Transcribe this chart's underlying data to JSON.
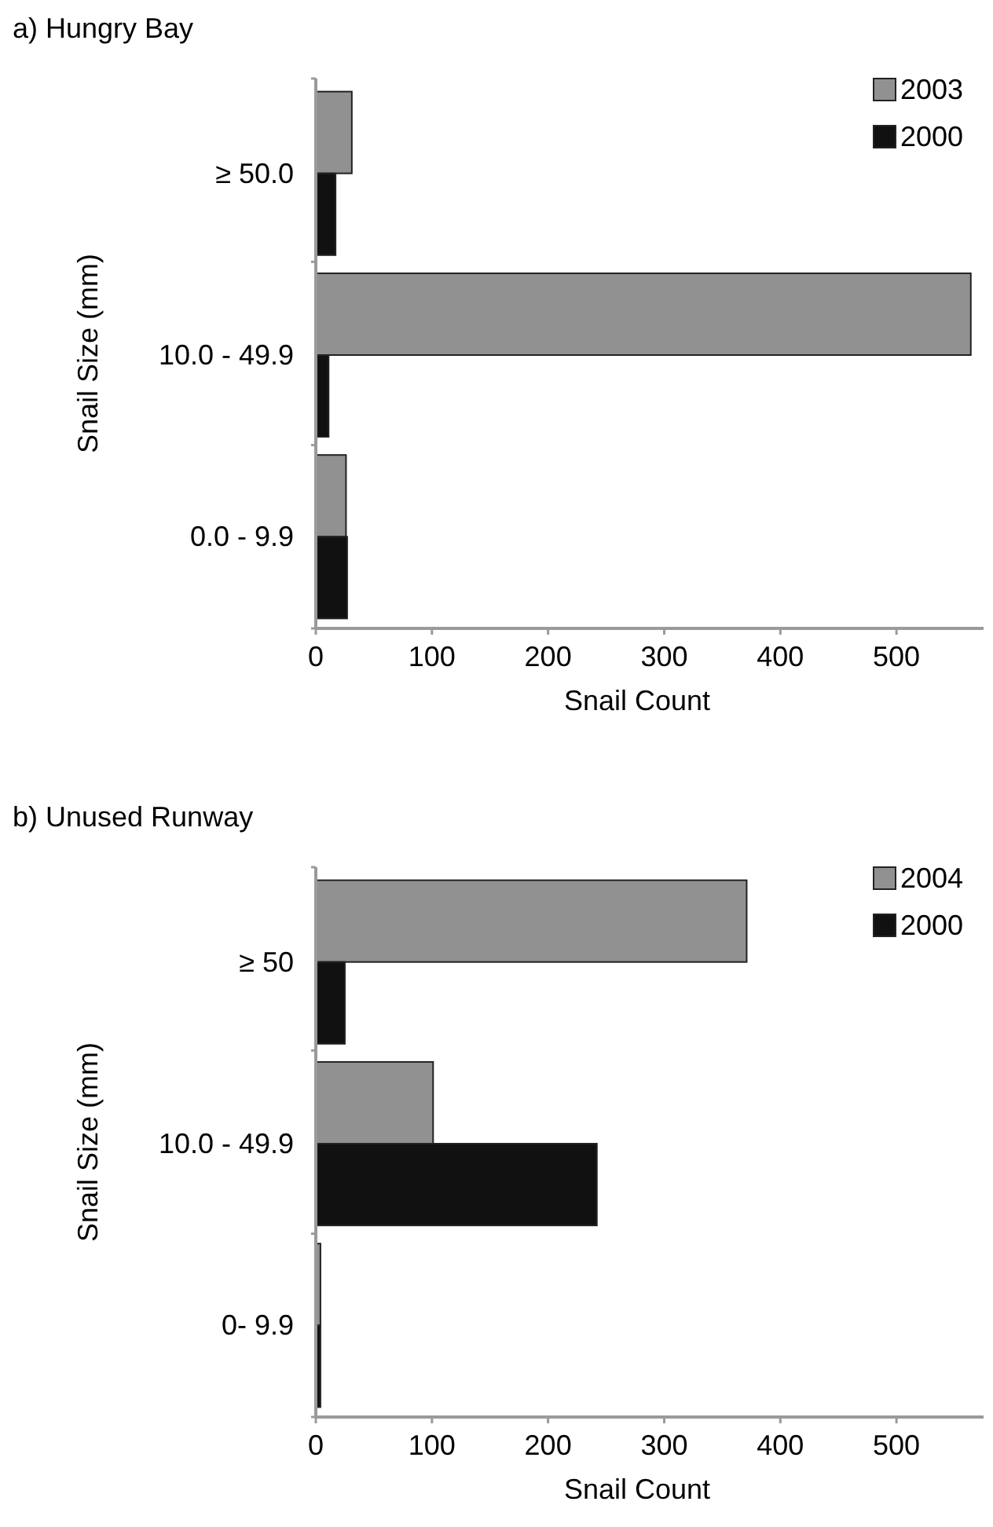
{
  "chart_data": [
    {
      "type": "bar",
      "orientation": "horizontal",
      "title": "a) Hungry Bay",
      "xlabel": "Snail Count",
      "ylabel": "Snail Size (mm)",
      "categories": [
        "≥ 50.0",
        "10.0 - 49.9",
        "0.0 - 9.9"
      ],
      "series": [
        {
          "name": "2003",
          "color": "#919191",
          "values": [
            31,
            564,
            26
          ]
        },
        {
          "name": "2000",
          "color": "#111111",
          "values": [
            17,
            11,
            27
          ]
        }
      ],
      "xlim": [
        0,
        575
      ],
      "xticks": [
        0,
        100,
        200,
        300,
        400,
        500
      ],
      "legend": "top right"
    },
    {
      "type": "bar",
      "orientation": "horizontal",
      "title": "b) Unused Runway",
      "xlabel": "Snail Count",
      "ylabel": "Snail Size (mm)",
      "categories": [
        "≥ 50",
        "10.0 - 49.9",
        "0- 9.9"
      ],
      "series": [
        {
          "name": "2004",
          "color": "#919191",
          "values": [
            371,
            101,
            4
          ]
        },
        {
          "name": "2000",
          "color": "#111111",
          "values": [
            25,
            242,
            4
          ]
        }
      ],
      "xlim": [
        0,
        575
      ],
      "xticks": [
        0,
        100,
        200,
        300,
        400,
        500
      ],
      "legend": "top right"
    }
  ]
}
